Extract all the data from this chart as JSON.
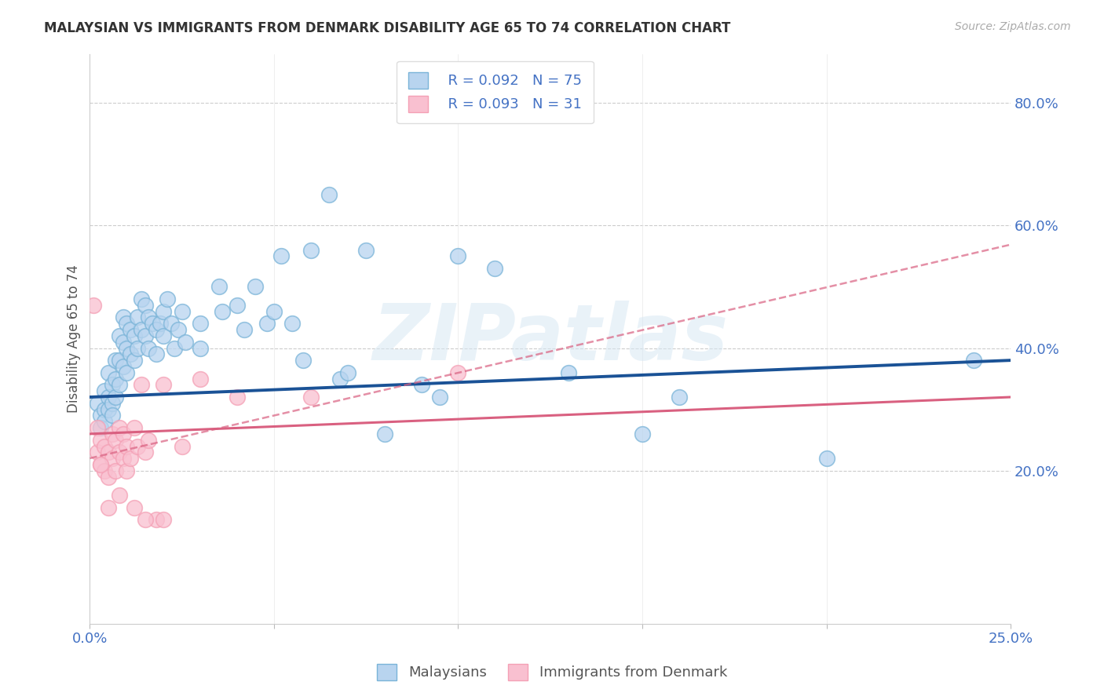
{
  "title": "MALAYSIAN VS IMMIGRANTS FROM DENMARK DISABILITY AGE 65 TO 74 CORRELATION CHART",
  "source_text": "Source: ZipAtlas.com",
  "ylabel": "Disability Age 65 to 74",
  "xlim": [
    0.0,
    0.25
  ],
  "ylim": [
    -0.05,
    0.88
  ],
  "x_ticks": [
    0.0,
    0.05,
    0.1,
    0.15,
    0.2,
    0.25
  ],
  "x_tick_labels": [
    "0.0%",
    "",
    "",
    "",
    "",
    "25.0%"
  ],
  "y_ticks_right": [
    0.2,
    0.4,
    0.6,
    0.8
  ],
  "y_tick_labels_right": [
    "20.0%",
    "40.0%",
    "60.0%",
    "80.0%"
  ],
  "legend_r1": "R = 0.092",
  "legend_n1": "N = 75",
  "legend_r2": "R = 0.093",
  "legend_n2": "N = 31",
  "legend_bottom_labels": [
    "Malaysians",
    "Immigrants from Denmark"
  ],
  "blue_color": "#7ab4d8",
  "pink_color": "#f4a0b5",
  "trend_blue": "#1a5296",
  "trend_pink": "#d96080",
  "axis_color": "#4472c4",
  "watermark": "ZIPatlas",
  "blue_scatter_x": [
    0.002,
    0.003,
    0.003,
    0.004,
    0.004,
    0.004,
    0.005,
    0.005,
    0.005,
    0.006,
    0.006,
    0.006,
    0.007,
    0.007,
    0.007,
    0.008,
    0.008,
    0.008,
    0.009,
    0.009,
    0.009,
    0.01,
    0.01,
    0.01,
    0.011,
    0.011,
    0.012,
    0.012,
    0.013,
    0.013,
    0.014,
    0.014,
    0.015,
    0.015,
    0.016,
    0.016,
    0.017,
    0.018,
    0.018,
    0.019,
    0.02,
    0.02,
    0.021,
    0.022,
    0.023,
    0.024,
    0.025,
    0.026,
    0.03,
    0.03,
    0.035,
    0.036,
    0.04,
    0.042,
    0.045,
    0.048,
    0.05,
    0.052,
    0.055,
    0.058,
    0.06,
    0.065,
    0.068,
    0.07,
    0.075,
    0.08,
    0.09,
    0.095,
    0.1,
    0.11,
    0.13,
    0.15,
    0.16,
    0.2,
    0.24
  ],
  "blue_scatter_y": [
    0.31,
    0.29,
    0.27,
    0.33,
    0.3,
    0.28,
    0.36,
    0.32,
    0.3,
    0.34,
    0.31,
    0.29,
    0.38,
    0.35,
    0.32,
    0.42,
    0.38,
    0.34,
    0.45,
    0.41,
    0.37,
    0.44,
    0.4,
    0.36,
    0.43,
    0.39,
    0.42,
    0.38,
    0.45,
    0.4,
    0.48,
    0.43,
    0.47,
    0.42,
    0.45,
    0.4,
    0.44,
    0.43,
    0.39,
    0.44,
    0.46,
    0.42,
    0.48,
    0.44,
    0.4,
    0.43,
    0.46,
    0.41,
    0.44,
    0.4,
    0.5,
    0.46,
    0.47,
    0.43,
    0.5,
    0.44,
    0.46,
    0.55,
    0.44,
    0.38,
    0.56,
    0.65,
    0.35,
    0.36,
    0.56,
    0.26,
    0.34,
    0.32,
    0.55,
    0.53,
    0.36,
    0.26,
    0.32,
    0.22,
    0.38
  ],
  "pink_scatter_x": [
    0.002,
    0.002,
    0.003,
    0.003,
    0.004,
    0.004,
    0.005,
    0.005,
    0.006,
    0.006,
    0.007,
    0.007,
    0.008,
    0.008,
    0.009,
    0.009,
    0.01,
    0.01,
    0.011,
    0.012,
    0.013,
    0.014,
    0.015,
    0.016,
    0.018,
    0.02,
    0.025,
    0.03,
    0.04,
    0.06,
    0.1
  ],
  "pink_scatter_y": [
    0.27,
    0.23,
    0.25,
    0.21,
    0.24,
    0.2,
    0.23,
    0.19,
    0.26,
    0.22,
    0.25,
    0.2,
    0.27,
    0.23,
    0.26,
    0.22,
    0.24,
    0.2,
    0.22,
    0.27,
    0.24,
    0.34,
    0.23,
    0.25,
    0.12,
    0.34,
    0.24,
    0.35,
    0.32,
    0.32,
    0.36
  ],
  "pink_extra_x": [
    0.001,
    0.003,
    0.005,
    0.008,
    0.012,
    0.015,
    0.02
  ],
  "pink_extra_y": [
    0.47,
    0.21,
    0.14,
    0.16,
    0.14,
    0.12,
    0.12
  ]
}
